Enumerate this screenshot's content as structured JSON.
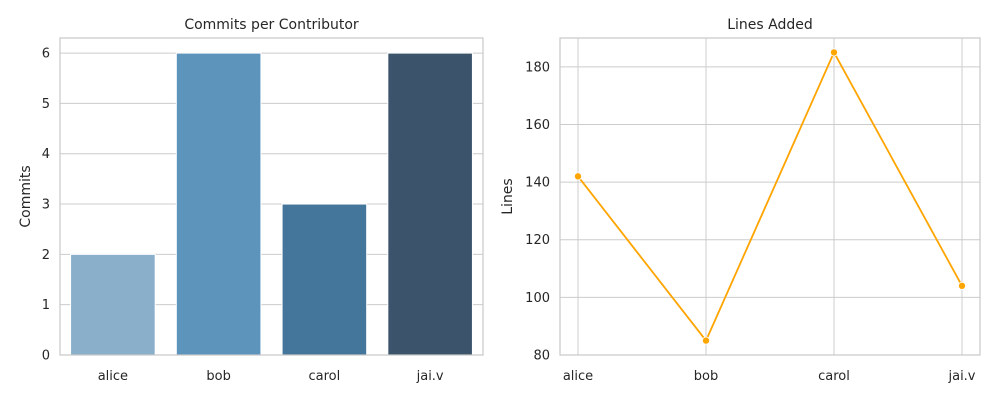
{
  "chart_data": [
    {
      "type": "bar",
      "title": "Commits per Contributor",
      "xlabel": "",
      "ylabel": "Commits",
      "categories": [
        "alice",
        "bob",
        "carol",
        "jai.v"
      ],
      "values": [
        2,
        6,
        3,
        6
      ],
      "ylim": [
        0,
        6.3
      ],
      "yticks": [
        0,
        1,
        2,
        3,
        4,
        5,
        6
      ],
      "colors": [
        "#8aafca",
        "#5d94bc",
        "#44759a",
        "#3c546b"
      ],
      "grid": true
    },
    {
      "type": "line",
      "title": "Lines Added",
      "xlabel": "",
      "ylabel": "Lines",
      "categories": [
        "alice",
        "bob",
        "carol",
        "jai.v"
      ],
      "values": [
        142,
        85,
        185,
        104
      ],
      "ylim": [
        80,
        190
      ],
      "yticks": [
        80,
        100,
        120,
        140,
        160,
        180
      ],
      "color": "#ffa500",
      "marker": "circle",
      "grid": true
    }
  ]
}
